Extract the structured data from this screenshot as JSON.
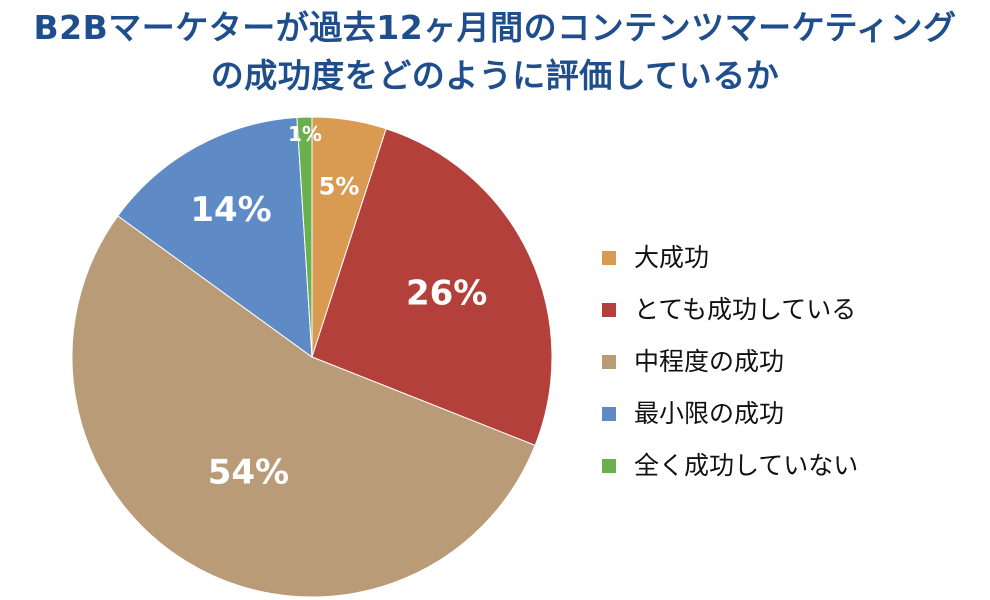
{
  "title_lines": [
    "B2Bマーケターが過去12ヶ月間のコンテンツマーケティング",
    "の成功度をどのように評価しているか"
  ],
  "chart_data": {
    "type": "pie",
    "title": "B2Bマーケターが過去12ヶ月間のコンテンツマーケティングの成功度をどのように評価しているか",
    "start_angle_deg": 0,
    "direction": "clockwise",
    "legend_position": "right",
    "slices": [
      {
        "label": "大成功",
        "value": 5,
        "display": "5%",
        "color": "#d99a52"
      },
      {
        "label": "とても成功している",
        "value": 26,
        "display": "26%",
        "color": "#b3403a"
      },
      {
        "label": "中程度の成功",
        "value": 54,
        "display": "54%",
        "color": "#b99b78"
      },
      {
        "label": "最小限の成功",
        "value": 14,
        "display": "14%",
        "color": "#5e8ac6"
      },
      {
        "label": "全く成功していない",
        "value": 1,
        "display": "1%",
        "color": "#6ab04c"
      }
    ]
  }
}
